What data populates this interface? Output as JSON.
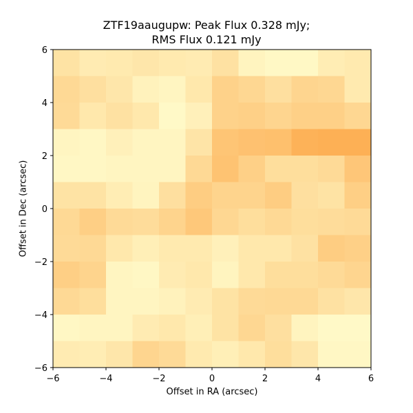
{
  "chart": {
    "title_line1": "ZTF19aaugupw: Peak Flux 0.328 mJy;",
    "title_line2": "RMS Flux 0.121 mJy",
    "xlabel": "Offset in RA (arcsec)",
    "ylabel": "Offset in Dec (arcsec)"
  },
  "chart_data": {
    "type": "heatmap",
    "title": "ZTF19aaugupw: Peak Flux 0.328 mJy; RMS Flux 0.121 mJy",
    "xlabel": "Offset in RA (arcsec)",
    "ylabel": "Offset in Dec (arcsec)",
    "xlim": [
      -6,
      6
    ],
    "ylim": [
      -6,
      6
    ],
    "x_ticks": [
      -6,
      -4,
      -2,
      0,
      2,
      4,
      6
    ],
    "y_ticks": [
      -6,
      -4,
      -2,
      0,
      2,
      4,
      6
    ],
    "x_tick_labels": [
      "−6",
      "−4",
      "−2",
      "0",
      "2",
      "4",
      "6"
    ],
    "y_tick_labels": [
      "−6",
      "−4",
      "−2",
      "0",
      "2",
      "4",
      "6"
    ],
    "grid": false,
    "colormap": "YlOrBr-like (light yellow to orange)",
    "value_units": "relative intensity (0 = lightest, 1 = darkest)",
    "rows_order": "top to bottom (Dec from +6 to −6)",
    "cells_per_side": 12,
    "values": [
      [
        0.3,
        0.2,
        0.22,
        0.26,
        0.22,
        0.2,
        0.32,
        0.1,
        0.05,
        0.05,
        0.18,
        0.22
      ],
      [
        0.42,
        0.34,
        0.26,
        0.12,
        0.08,
        0.24,
        0.5,
        0.44,
        0.34,
        0.46,
        0.44,
        0.22
      ],
      [
        0.4,
        0.24,
        0.32,
        0.24,
        0.04,
        0.14,
        0.5,
        0.52,
        0.46,
        0.52,
        0.52,
        0.44
      ],
      [
        0.08,
        0.06,
        0.14,
        0.08,
        0.08,
        0.28,
        0.66,
        0.7,
        0.72,
        0.88,
        0.9,
        0.9
      ],
      [
        0.06,
        0.06,
        0.08,
        0.08,
        0.08,
        0.42,
        0.68,
        0.52,
        0.36,
        0.36,
        0.4,
        0.64
      ],
      [
        0.3,
        0.3,
        0.18,
        0.1,
        0.34,
        0.56,
        0.48,
        0.48,
        0.56,
        0.34,
        0.3,
        0.54
      ],
      [
        0.42,
        0.54,
        0.4,
        0.38,
        0.48,
        0.62,
        0.44,
        0.36,
        0.42,
        0.36,
        0.38,
        0.4
      ],
      [
        0.4,
        0.42,
        0.24,
        0.16,
        0.22,
        0.22,
        0.14,
        0.24,
        0.24,
        0.32,
        0.56,
        0.52
      ],
      [
        0.54,
        0.48,
        0.08,
        0.06,
        0.2,
        0.24,
        0.1,
        0.24,
        0.36,
        0.36,
        0.4,
        0.46
      ],
      [
        0.42,
        0.36,
        0.08,
        0.08,
        0.12,
        0.2,
        0.3,
        0.4,
        0.42,
        0.42,
        0.32,
        0.26
      ],
      [
        0.06,
        0.08,
        0.08,
        0.2,
        0.24,
        0.16,
        0.3,
        0.44,
        0.34,
        0.1,
        0.04,
        0.04
      ],
      [
        0.2,
        0.18,
        0.26,
        0.46,
        0.4,
        0.22,
        0.16,
        0.24,
        0.36,
        0.26,
        0.06,
        0.06
      ]
    ]
  }
}
